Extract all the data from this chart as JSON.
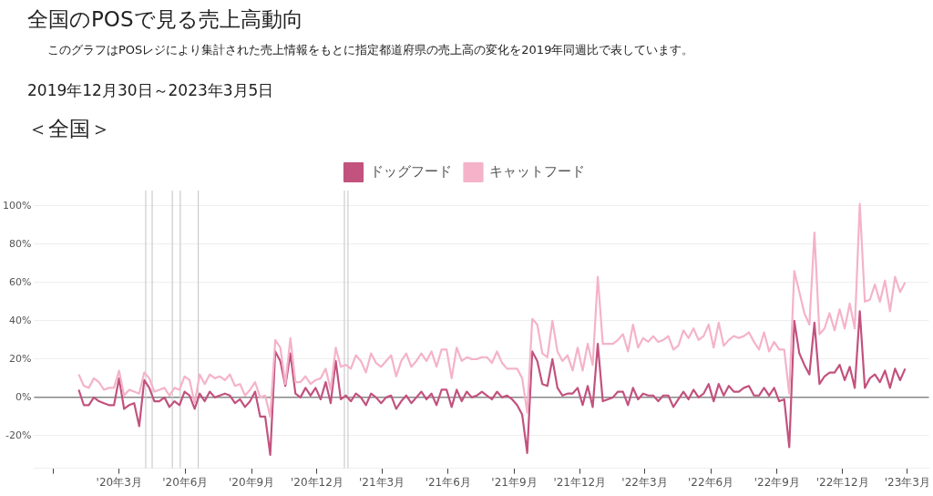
{
  "chart_data": {
    "type": "line",
    "title": "全国のPOSで見る売上高動向",
    "subtitle": "このグラフはPOSレジにより集計された売上情報をもとに指定都道府県の売上高の変化を2019年同週比で表しています。",
    "annotations": [
      "2019年12月30日～2023年3月5日",
      "＜全国＞"
    ],
    "x": [
      "2020-01-05",
      "2020-01-12",
      "2020-01-19",
      "2020-01-26",
      "2020-02-02",
      "2020-02-09",
      "2020-02-16",
      "2020-02-23",
      "2020-03-01",
      "2020-03-08",
      "2020-03-15",
      "2020-03-22",
      "2020-03-29",
      "2020-04-05",
      "2020-04-12",
      "2020-04-19",
      "2020-04-26",
      "2020-05-03",
      "2020-05-10",
      "2020-05-17",
      "2020-05-24",
      "2020-05-31",
      "2020-06-07",
      "2020-06-14",
      "2020-06-21",
      "2020-06-28",
      "2020-07-05",
      "2020-07-12",
      "2020-07-19",
      "2020-07-26",
      "2020-08-02",
      "2020-08-09",
      "2020-08-16",
      "2020-08-23",
      "2020-08-30",
      "2020-09-06",
      "2020-09-13",
      "2020-09-20",
      "2020-09-27",
      "2020-10-04",
      "2020-10-11",
      "2020-10-18",
      "2020-10-25",
      "2020-11-01",
      "2020-11-08",
      "2020-11-15",
      "2020-11-22",
      "2020-11-29",
      "2020-12-06",
      "2020-12-13",
      "2020-12-20",
      "2020-12-27",
      "2021-01-03",
      "2021-01-10",
      "2021-01-17",
      "2021-01-24",
      "2021-01-31",
      "2021-02-07",
      "2021-02-14",
      "2021-02-21",
      "2021-02-28",
      "2021-03-07",
      "2021-03-14",
      "2021-03-21",
      "2021-03-28",
      "2021-04-04",
      "2021-04-11",
      "2021-04-18",
      "2021-04-25",
      "2021-05-02",
      "2021-05-09",
      "2021-05-16",
      "2021-05-23",
      "2021-05-30",
      "2021-06-06",
      "2021-06-13",
      "2021-06-20",
      "2021-06-27",
      "2021-07-04",
      "2021-07-11",
      "2021-07-18",
      "2021-07-25",
      "2021-08-01",
      "2021-08-08",
      "2021-08-15",
      "2021-08-22",
      "2021-08-29",
      "2021-09-05",
      "2021-09-12",
      "2021-09-19",
      "2021-09-26",
      "2021-10-03",
      "2021-10-10",
      "2021-10-17",
      "2021-10-24",
      "2021-10-31",
      "2021-11-07",
      "2021-11-14",
      "2021-11-21",
      "2021-11-28",
      "2021-12-05",
      "2021-12-12",
      "2021-12-19",
      "2021-12-26",
      "2022-01-02",
      "2022-01-09",
      "2022-01-16",
      "2022-01-23",
      "2022-01-30",
      "2022-02-06",
      "2022-02-13",
      "2022-02-20",
      "2022-02-27",
      "2022-03-06",
      "2022-03-13",
      "2022-03-20",
      "2022-03-27",
      "2022-04-03",
      "2022-04-10",
      "2022-04-17",
      "2022-04-24",
      "2022-05-01",
      "2022-05-08",
      "2022-05-15",
      "2022-05-22",
      "2022-05-29",
      "2022-06-05",
      "2022-06-12",
      "2022-06-19",
      "2022-06-26",
      "2022-07-03",
      "2022-07-10",
      "2022-07-17",
      "2022-07-24",
      "2022-07-31",
      "2022-08-07",
      "2022-08-14",
      "2022-08-21",
      "2022-08-28",
      "2022-09-04",
      "2022-09-11",
      "2022-09-18",
      "2022-09-25",
      "2022-10-02",
      "2022-10-09",
      "2022-10-16",
      "2022-10-23",
      "2022-10-30",
      "2022-11-06",
      "2022-11-13",
      "2022-11-20",
      "2022-11-27",
      "2022-12-04",
      "2022-12-11",
      "2022-12-18",
      "2022-12-25",
      "2023-01-01",
      "2023-01-08",
      "2023-01-15",
      "2023-01-22",
      "2023-01-29",
      "2023-02-05",
      "2023-02-12",
      "2023-02-19",
      "2023-02-26"
    ],
    "series": [
      {
        "name": "ドッグフード",
        "color": "#c2527e",
        "values": [
          4,
          -4,
          -4,
          0,
          -2,
          -3,
          -4,
          -4,
          10,
          -6,
          -4,
          -3,
          -15,
          9,
          5,
          -2,
          -2,
          0,
          -5,
          -2,
          -4,
          3,
          1,
          -6,
          2,
          -2,
          3,
          0,
          1,
          2,
          1,
          -3,
          -1,
          -5,
          -2,
          3,
          -10,
          -10,
          -30,
          24,
          19,
          6,
          23,
          2,
          0,
          5,
          1,
          5,
          -1,
          8,
          -3,
          19,
          -1,
          1,
          -2,
          2,
          0,
          -4,
          2,
          0,
          -3,
          0,
          1,
          -6,
          -2,
          1,
          -3,
          0,
          3,
          -1,
          2,
          -4,
          4,
          4,
          -5,
          4,
          -2,
          3,
          0,
          1,
          3,
          1,
          -1,
          3,
          0,
          1,
          -1,
          -4,
          -9,
          -29,
          24,
          19,
          7,
          6,
          20,
          5,
          1,
          2,
          2,
          5,
          -4,
          6,
          -5,
          28,
          -2,
          -1,
          0,
          3,
          3,
          -4,
          5,
          -1,
          2,
          1,
          1,
          -2,
          1,
          1,
          -5,
          -1,
          3,
          -1,
          4,
          0,
          2,
          7,
          -2,
          7,
          1,
          6,
          3,
          3,
          5,
          6,
          1,
          1,
          5,
          1,
          5,
          -2,
          -1,
          -26,
          40,
          23,
          17,
          12,
          39,
          7,
          11,
          13,
          13,
          17,
          9,
          16,
          5,
          45,
          5,
          10,
          12,
          8,
          14,
          5,
          15,
          9,
          15
        ]
      },
      {
        "name": "キャットフード",
        "color": "#f4b3c9",
        "values": [
          12,
          6,
          5,
          10,
          8,
          4,
          5,
          5,
          14,
          1,
          4,
          3,
          2,
          13,
          10,
          3,
          4,
          5,
          1,
          5,
          4,
          11,
          9,
          -3,
          12,
          7,
          12,
          10,
          11,
          9,
          12,
          6,
          7,
          1,
          4,
          8,
          0,
          1,
          -10,
          30,
          26,
          7,
          31,
          8,
          8,
          11,
          7,
          9,
          10,
          15,
          4,
          26,
          16,
          17,
          15,
          22,
          19,
          13,
          23,
          18,
          16,
          19,
          22,
          11,
          19,
          23,
          16,
          19,
          23,
          19,
          24,
          16,
          25,
          25,
          10,
          26,
          19,
          21,
          20,
          20,
          21,
          21,
          18,
          24,
          18,
          15,
          15,
          15,
          10,
          -8,
          41,
          38,
          23,
          21,
          40,
          24,
          19,
          22,
          14,
          26,
          14,
          28,
          17,
          63,
          28,
          28,
          28,
          30,
          33,
          24,
          38,
          26,
          31,
          29,
          32,
          29,
          30,
          32,
          25,
          27,
          35,
          31,
          36,
          30,
          32,
          38,
          26,
          39,
          27,
          30,
          32,
          31,
          32,
          34,
          29,
          25,
          34,
          24,
          29,
          25,
          25,
          2,
          66,
          55,
          44,
          38,
          86,
          33,
          36,
          44,
          35,
          46,
          36,
          49,
          36,
          101,
          50,
          51,
          59,
          50,
          61,
          45,
          63,
          55,
          60
        ]
      }
    ],
    "xlim": [
      "2019-11-04",
      "2023-03-31"
    ],
    "xticks": [
      {
        "value": "2019-12-01",
        "label": null
      },
      {
        "value": "2020-03-01",
        "label": "'20年3月"
      },
      {
        "value": "2020-06-01",
        "label": "'20年6月"
      },
      {
        "value": "2020-09-01",
        "label": "'20年9月"
      },
      {
        "value": "2020-12-01",
        "label": "'20年12月"
      },
      {
        "value": "2021-03-01",
        "label": "'21年3月"
      },
      {
        "value": "2021-06-01",
        "label": "'21年6月"
      },
      {
        "value": "2021-09-01",
        "label": "'21年9月"
      },
      {
        "value": "2021-12-01",
        "label": "'21年12月"
      },
      {
        "value": "2022-03-01",
        "label": "'22年3月"
      },
      {
        "value": "2022-06-01",
        "label": "'22年6月"
      },
      {
        "value": "2022-09-01",
        "label": "'22年9月"
      },
      {
        "value": "2022-12-01",
        "label": "'22年12月"
      },
      {
        "value": "2023-03-01",
        "label": "'23年3月"
      }
    ],
    "ylim": [
      -37,
      108
    ],
    "yticks": [
      {
        "value": -20,
        "label": "-20%"
      },
      {
        "value": 0,
        "label": "0%"
      },
      {
        "value": 20,
        "label": "20%"
      },
      {
        "value": 40,
        "label": "40%"
      },
      {
        "value": 60,
        "label": "60%"
      },
      {
        "value": 80,
        "label": "80%"
      },
      {
        "value": 100,
        "label": "100%"
      }
    ],
    "ref_lines": [
      {
        "axis": "y",
        "value": 0,
        "color": "#888888"
      },
      {
        "axis": "x",
        "value": "2020-04-07",
        "color": "#cccccc"
      },
      {
        "axis": "x",
        "value": "2020-04-16",
        "color": "#cccccc"
      },
      {
        "axis": "x",
        "value": "2020-05-14",
        "color": "#cccccc"
      },
      {
        "axis": "x",
        "value": "2020-05-25",
        "color": "#cccccc"
      },
      {
        "axis": "x",
        "value": "2020-06-19",
        "color": "#cccccc"
      },
      {
        "axis": "x",
        "value": "2021-01-08",
        "color": "#cccccc"
      },
      {
        "axis": "x",
        "value": "2021-01-13",
        "color": "#cccccc"
      }
    ],
    "grid": "y",
    "legend": "top",
    "marker": "none",
    "line_style": "solid"
  }
}
